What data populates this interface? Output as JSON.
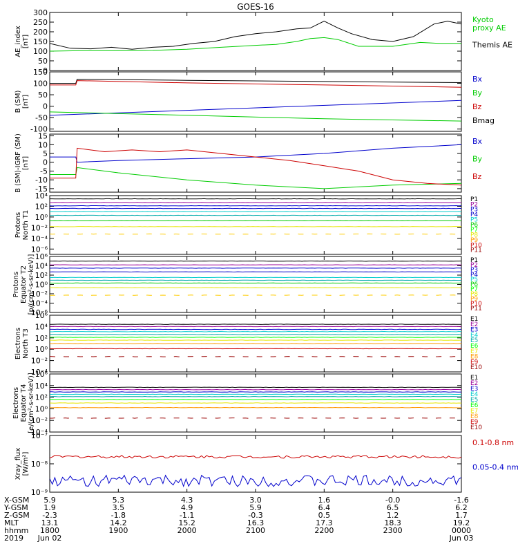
{
  "title": "GOES-16",
  "colors": {
    "black": "#000000",
    "green": "#00cc00",
    "blue": "#0000cc",
    "red": "#cc0000",
    "cyan": "#00cccc",
    "lime": "#00ff00",
    "yellow": "#e6e600",
    "orange": "#ff9900",
    "purple": "#990099",
    "violet": "#9933cc",
    "teal": "#00aaaa",
    "lightgreen": "#66ff66",
    "gold": "#ffcc00",
    "darkred": "#990000"
  },
  "chart_data": [
    {
      "type": "line",
      "ylabel": [
        "AE_index",
        "[nT]"
      ],
      "scale": "linear",
      "ylim": [
        0,
        300
      ],
      "ticks": [
        {
          "v": 0,
          "l": "0"
        },
        {
          "v": 50,
          "l": "50"
        },
        {
          "v": 100,
          "l": "100"
        },
        {
          "v": 150,
          "l": "150"
        },
        {
          "v": 200,
          "l": "200"
        },
        {
          "v": 250,
          "l": "250"
        },
        {
          "v": 300,
          "l": "300"
        }
      ],
      "legend": [
        {
          "label": "Kyoto\nproxy AE",
          "color": "green"
        },
        {
          "label": "Themis AE",
          "color": "black"
        }
      ],
      "series": [
        {
          "name": "Themis AE",
          "color": "black",
          "x": [
            18.0,
            18.3,
            18.6,
            18.9,
            19.2,
            19.5,
            19.8,
            20.1,
            20.4,
            20.7,
            21.0,
            21.3,
            21.6,
            21.8,
            22.0,
            22.2,
            22.4,
            22.7,
            23.0,
            23.3,
            23.6,
            23.8,
            24.0
          ],
          "y": [
            140,
            115,
            112,
            120,
            110,
            120,
            125,
            140,
            150,
            175,
            190,
            200,
            215,
            220,
            255,
            220,
            190,
            160,
            150,
            175,
            240,
            255,
            240
          ]
        },
        {
          "name": "Kyoto proxy AE",
          "color": "green",
          "x": [
            18.0,
            18.5,
            19.0,
            19.5,
            20.0,
            20.5,
            21.0,
            21.3,
            21.6,
            21.8,
            22.0,
            22.2,
            22.5,
            23.0,
            23.4,
            23.7,
            24.0
          ],
          "y": [
            100,
            103,
            102,
            104,
            110,
            120,
            130,
            135,
            150,
            165,
            170,
            160,
            125,
            125,
            145,
            140,
            140
          ]
        }
      ]
    },
    {
      "type": "line",
      "ylabel": [
        "B (SM)",
        "[nT]"
      ],
      "scale": "linear",
      "ylim": [
        -110,
        150
      ],
      "ticks": [
        {
          "v": -100,
          "l": "-100"
        },
        {
          "v": -50,
          "l": "-50"
        },
        {
          "v": 0,
          "l": "0"
        },
        {
          "v": 50,
          "l": "50"
        },
        {
          "v": 100,
          "l": "100"
        },
        {
          "v": 150,
          "l": "150"
        }
      ],
      "legend": [
        {
          "label": "Bx",
          "color": "blue"
        },
        {
          "label": "By",
          "color": "green"
        },
        {
          "label": "Bz",
          "color": "red"
        },
        {
          "label": "Bmag",
          "color": "black"
        }
      ],
      "series": [
        {
          "name": "Bmag",
          "color": "black",
          "x": [
            18.0,
            18.38,
            18.4,
            20.0,
            22.0,
            24.0
          ],
          "y": [
            100,
            100,
            118,
            113,
            108,
            103
          ]
        },
        {
          "name": "Bz",
          "color": "red",
          "x": [
            18.0,
            18.38,
            18.4,
            20.0,
            22.0,
            24.0
          ],
          "y": [
            93,
            93,
            112,
            102,
            93,
            83
          ]
        },
        {
          "name": "Bx",
          "color": "blue",
          "x": [
            18.0,
            24.0
          ],
          "y": [
            -40,
            25
          ]
        },
        {
          "name": "By",
          "color": "green",
          "x": [
            18.0,
            20.0,
            22.0,
            24.0
          ],
          "y": [
            -25,
            -40,
            -55,
            -65
          ]
        }
      ]
    },
    {
      "type": "line",
      "ylabel": [
        "B (SM)-IGRF (SM)",
        "[nT]"
      ],
      "scale": "linear",
      "ylim": [
        -17,
        16
      ],
      "ticks": [
        {
          "v": -15,
          "l": "-15"
        },
        {
          "v": -10,
          "l": "-10"
        },
        {
          "v": -5,
          "l": "-5"
        },
        {
          "v": 0,
          "l": "0"
        },
        {
          "v": 5,
          "l": "5"
        },
        {
          "v": 10,
          "l": "10"
        },
        {
          "v": 15,
          "l": "15"
        }
      ],
      "legend": [
        {
          "label": "Bx",
          "color": "blue"
        },
        {
          "label": "By",
          "color": "green"
        },
        {
          "label": "Bz",
          "color": "red"
        }
      ],
      "series": [
        {
          "name": "Bx",
          "color": "blue",
          "x": [
            18.0,
            18.38,
            18.4,
            19.0,
            20.0,
            21.0,
            22.0,
            23.0,
            24.0
          ],
          "y": [
            3,
            3,
            0,
            1,
            2,
            3,
            5,
            8,
            10
          ]
        },
        {
          "name": "By",
          "color": "green",
          "x": [
            18.0,
            18.38,
            18.4,
            19.0,
            20.0,
            21.0,
            22.0,
            23.0,
            24.0
          ],
          "y": [
            -7,
            -7,
            -3,
            -6,
            -10,
            -13,
            -15,
            -13,
            -12
          ]
        },
        {
          "name": "Bz",
          "color": "red",
          "x": [
            18.0,
            18.38,
            18.4,
            18.8,
            19.2,
            19.6,
            20.0,
            20.5,
            21.0,
            21.5,
            22.0,
            22.5,
            23.0,
            23.5,
            24.0
          ],
          "y": [
            -9,
            -9,
            8,
            6,
            7,
            6,
            7,
            5,
            3,
            1,
            -2,
            -5,
            -10,
            -12,
            -13
          ]
        }
      ]
    },
    {
      "type": "line",
      "ylabel": [
        "Protons",
        "North T1"
      ],
      "scale": "log",
      "ylim": [
        -7,
        4
      ],
      "ticks": [
        {
          "v": 4,
          "l": "10⁴"
        },
        {
          "v": 2,
          "l": "10²"
        },
        {
          "v": 0,
          "l": "10⁰"
        },
        {
          "v": -2,
          "l": "10⁻²"
        },
        {
          "v": -4,
          "l": "10⁻⁴"
        },
        {
          "v": -6,
          "l": "10⁻⁶"
        }
      ],
      "legend": [
        {
          "label": "P1",
          "color": "black"
        },
        {
          "label": "P2",
          "color": "purple"
        },
        {
          "label": "P3",
          "color": "blue"
        },
        {
          "label": "P4",
          "color": "blue"
        },
        {
          "label": "P5",
          "color": "cyan"
        },
        {
          "label": "P6",
          "color": "green"
        },
        {
          "label": "P7",
          "color": "lime"
        },
        {
          "label": "P8",
          "color": "yellow"
        },
        {
          "label": "P9",
          "color": "orange"
        },
        {
          "label": "P10",
          "color": "red"
        },
        {
          "label": "P11",
          "color": "darkred"
        }
      ],
      "series": [
        {
          "name": "P1",
          "color": "black",
          "level": 3.4
        },
        {
          "name": "P2",
          "color": "purple",
          "level": 2.7
        },
        {
          "name": "P3",
          "color": "blue",
          "level": 2.1
        },
        {
          "name": "P4",
          "color": "blue",
          "level": 1.6
        },
        {
          "name": "P5",
          "color": "cyan",
          "level": 1.0
        },
        {
          "name": "P6",
          "color": "teal",
          "level": 0.3
        },
        {
          "name": "P7",
          "color": "green",
          "level": -0.7
        },
        {
          "name": "P8",
          "color": "yellow",
          "level": -1.8
        },
        {
          "name": "P9",
          "color": "gold",
          "level": -3.2,
          "dashed": true
        }
      ]
    },
    {
      "type": "line",
      "ylabel": [
        "Protons",
        "Equator T2",
        "[p/(cm²-s-sr-keV)]"
      ],
      "scale": "log",
      "ylim": [
        -6,
        6
      ],
      "ticks": [
        {
          "v": 6,
          "l": "10⁶"
        },
        {
          "v": 4,
          "l": "10⁴"
        },
        {
          "v": 2,
          "l": "10²"
        },
        {
          "v": 0,
          "l": "10⁰"
        },
        {
          "v": -2,
          "l": "10⁻²"
        },
        {
          "v": -4,
          "l": "10⁻⁴"
        },
        {
          "v": -6,
          "l": "10⁻⁶"
        }
      ],
      "legend": [
        {
          "label": "P1",
          "color": "black"
        },
        {
          "label": "P2",
          "color": "purple"
        },
        {
          "label": "P3",
          "color": "blue"
        },
        {
          "label": "P4",
          "color": "blue"
        },
        {
          "label": "P5",
          "color": "cyan"
        },
        {
          "label": "P6",
          "color": "green"
        },
        {
          "label": "P7",
          "color": "lime"
        },
        {
          "label": "P8",
          "color": "yellow"
        },
        {
          "label": "P9",
          "color": "orange"
        },
        {
          "label": "P10",
          "color": "red"
        },
        {
          "label": "P11",
          "color": "darkred"
        }
      ],
      "series": [
        {
          "name": "P1",
          "color": "black",
          "level": 5.0
        },
        {
          "name": "P2",
          "color": "purple",
          "level": 4.2
        },
        {
          "name": "P3",
          "color": "blue",
          "level": 3.5
        },
        {
          "name": "P4",
          "color": "blue",
          "level": 2.7
        },
        {
          "name": "P5",
          "color": "cyan",
          "level": 1.5
        },
        {
          "name": "P6",
          "color": "teal",
          "level": 0.9
        },
        {
          "name": "P7",
          "color": "green",
          "level": 0.3
        },
        {
          "name": "P8",
          "color": "yellow",
          "level": -0.7
        },
        {
          "name": "P9",
          "color": "gold",
          "level": -2.3,
          "dashed": true
        }
      ]
    },
    {
      "type": "line",
      "ylabel": [
        "Electrons",
        "North T3"
      ],
      "scale": "log",
      "ylim": [
        -4,
        6
      ],
      "ticks": [
        {
          "v": 6,
          "l": "10⁶"
        },
        {
          "v": 4,
          "l": "10⁴"
        },
        {
          "v": 2,
          "l": "10²"
        },
        {
          "v": 0,
          "l": "10⁰"
        },
        {
          "v": -2,
          "l": "10⁻²"
        },
        {
          "v": -4,
          "l": "10⁻⁴"
        }
      ],
      "legend": [
        {
          "label": "E1",
          "color": "black"
        },
        {
          "label": "E2",
          "color": "purple"
        },
        {
          "label": "E3",
          "color": "blue"
        },
        {
          "label": "E4",
          "color": "cyan"
        },
        {
          "label": "E5",
          "color": "teal"
        },
        {
          "label": "E6",
          "color": "lime"
        },
        {
          "label": "E7",
          "color": "yellow"
        },
        {
          "label": "E8",
          "color": "orange"
        },
        {
          "label": "E9",
          "color": "red"
        },
        {
          "label": "E10",
          "color": "darkred"
        }
      ],
      "series": [
        {
          "name": "E1",
          "color": "black",
          "level": 4.4
        },
        {
          "name": "E2",
          "color": "purple",
          "level": 4.0
        },
        {
          "name": "E3",
          "color": "blue",
          "level": 3.5
        },
        {
          "name": "E4",
          "color": "cyan",
          "level": 3.1
        },
        {
          "name": "E5",
          "color": "teal",
          "level": 2.6
        },
        {
          "name": "E6",
          "color": "lime",
          "level": 2.1
        },
        {
          "name": "E7",
          "color": "yellow",
          "level": 1.6
        },
        {
          "name": "E8",
          "color": "orange",
          "level": 1.0
        },
        {
          "name": "E9",
          "color": "red",
          "level": 0.1
        },
        {
          "name": "E10",
          "color": "darkred",
          "level": -1.3,
          "dashed": true
        }
      ]
    },
    {
      "type": "line",
      "ylabel": [
        "Electrons",
        "Equator T4",
        "[e/(cm²-s-sr-keV)]"
      ],
      "scale": "log",
      "ylim": [
        -4,
        6
      ],
      "ticks": [
        {
          "v": 6,
          "l": "10⁶"
        },
        {
          "v": 4,
          "l": "10⁴"
        },
        {
          "v": 2,
          "l": "10²"
        },
        {
          "v": 0,
          "l": "10⁰"
        },
        {
          "v": -2,
          "l": "10⁻²"
        },
        {
          "v": -4,
          "l": "10⁻⁴"
        }
      ],
      "legend": [
        {
          "label": "E1",
          "color": "black"
        },
        {
          "label": "E2",
          "color": "purple"
        },
        {
          "label": "E3",
          "color": "blue"
        },
        {
          "label": "E4",
          "color": "cyan"
        },
        {
          "label": "E5",
          "color": "teal"
        },
        {
          "label": "E6",
          "color": "lime"
        },
        {
          "label": "E7",
          "color": "yellow"
        },
        {
          "label": "E8",
          "color": "orange"
        },
        {
          "label": "E9",
          "color": "red"
        },
        {
          "label": "E10",
          "color": "darkred"
        }
      ],
      "series": [
        {
          "name": "E1",
          "color": "black",
          "level": 3.7
        },
        {
          "name": "E2",
          "color": "purple",
          "level": 3.3
        },
        {
          "name": "E3",
          "color": "blue",
          "level": 2.9
        },
        {
          "name": "E4",
          "color": "cyan",
          "level": 2.5
        },
        {
          "name": "E5",
          "color": "teal",
          "level": 2.1
        },
        {
          "name": "E6",
          "color": "lime",
          "level": 1.6
        },
        {
          "name": "E7",
          "color": "yellow",
          "level": 1.0
        },
        {
          "name": "E8",
          "color": "orange",
          "level": 0.2
        },
        {
          "name": "E9",
          "color": "darkred",
          "level": -1.6,
          "dashed": true
        }
      ]
    },
    {
      "type": "line",
      "ylabel": [
        "Xray_flux",
        "[W/m²]"
      ],
      "scale": "log",
      "ylim": [
        -9,
        -7
      ],
      "ticks": [
        {
          "v": -7,
          "l": "10⁻⁷"
        },
        {
          "v": -8,
          "l": "10⁻⁸"
        },
        {
          "v": -9,
          "l": "10⁻⁹"
        }
      ],
      "legend": [
        {
          "label": "0.1-0.8 nm",
          "color": "red"
        },
        {
          "label": "0.05-0.4 nm",
          "color": "blue"
        }
      ],
      "series": [
        {
          "name": "0.1-0.8 nm",
          "color": "red",
          "level": -7.75,
          "noise": 0.05
        },
        {
          "name": "0.05-0.4 nm",
          "color": "blue",
          "level": -8.6,
          "noise": 0.2
        }
      ]
    }
  ],
  "xaxis": {
    "range": [
      18.0,
      24.0
    ],
    "ticks": [
      18.0,
      19.0,
      20.0,
      21.0,
      22.0,
      23.0,
      24.0
    ],
    "rows": [
      {
        "label": "X-GSM",
        "values": [
          "5.9",
          "5.3",
          "4.3",
          "3.0",
          "1.6",
          "-0.0",
          "-1.6"
        ]
      },
      {
        "label": "Y-GSM",
        "values": [
          "1.9",
          "3.5",
          "4.9",
          "5.9",
          "6.4",
          "6.5",
          "6.2"
        ]
      },
      {
        "label": "Z-GSM",
        "values": [
          "-2.3",
          "-1.8",
          "-1.1",
          "-0.3",
          "0.5",
          "1.2",
          "1.7"
        ]
      },
      {
        "label": "MLT",
        "values": [
          "13.1",
          "14.2",
          "15.2",
          "16.3",
          "17.3",
          "18.3",
          "19.2"
        ]
      },
      {
        "label": "hhmm",
        "values": [
          "1800",
          "1900",
          "2000",
          "2100",
          "2200",
          "2300",
          "0000"
        ]
      },
      {
        "label": "2019",
        "values": [
          "Jun 02",
          "",
          "",
          "",
          "",
          "",
          "Jun 03"
        ]
      }
    ]
  }
}
